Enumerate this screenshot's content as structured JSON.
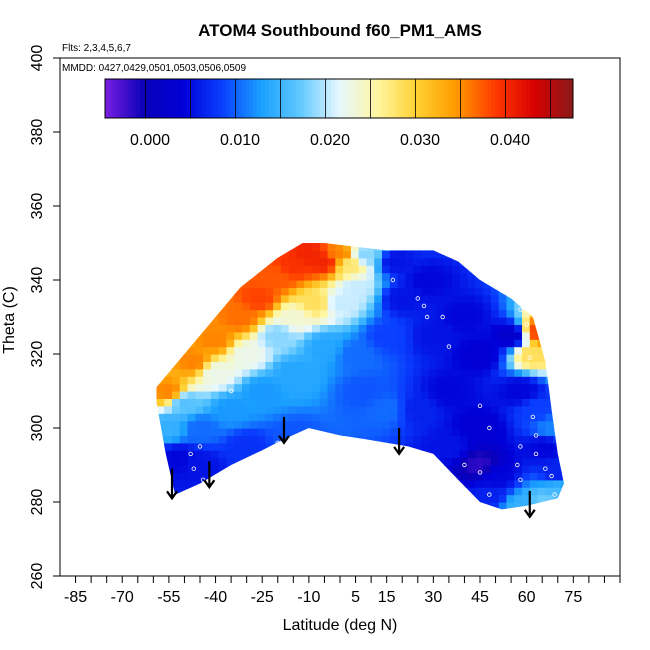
{
  "chart_data": {
    "type": "heatmap",
    "title": "ATOM4 Southbound f60_PM1_AMS",
    "flights_note": "Flts: 2,3,4,5,6,7",
    "dates_note": "MMDD: 0427,0429,0501,0503,0506,0509",
    "xlabel": "Latitude (deg N)",
    "ylabel": "Theta (C)",
    "xlim": [
      -90,
      90
    ],
    "ylim": [
      260,
      400
    ],
    "x_ticks": [
      -85,
      -70,
      -55,
      -40,
      -25,
      -10,
      5,
      15,
      30,
      45,
      60,
      75
    ],
    "y_ticks": [
      260,
      280,
      300,
      320,
      340,
      360,
      380,
      400
    ],
    "colorbar": {
      "range": [
        -0.005,
        0.047
      ],
      "ticks": [
        0.0,
        0.01,
        0.02,
        0.03,
        0.04
      ],
      "tick_labels": [
        "0.000",
        "0.010",
        "0.020",
        "0.030",
        "0.040"
      ],
      "colors": [
        "#7a1fe0",
        "#0a00b8",
        "#0000d8",
        "#0a3fff",
        "#1aa0ff",
        "#60c8ff",
        "#e6f7ff",
        "#fff6a0",
        "#ffd030",
        "#ff9a00",
        "#ff3a00",
        "#d80000",
        "#8a1a1a"
      ]
    },
    "field_outline": [
      [
        -59,
        307
      ],
      [
        -56,
        293
      ],
      [
        -53,
        282
      ],
      [
        -45,
        285
      ],
      [
        -35,
        290
      ],
      [
        -25,
        294
      ],
      [
        -18,
        297
      ],
      [
        -10,
        300
      ],
      [
        -5,
        299
      ],
      [
        0,
        298
      ],
      [
        8,
        297
      ],
      [
        15,
        296
      ],
      [
        22,
        295
      ],
      [
        30,
        293
      ],
      [
        38,
        286
      ],
      [
        45,
        280
      ],
      [
        52,
        278
      ],
      [
        60,
        279
      ],
      [
        70,
        281
      ],
      [
        72,
        285
      ],
      [
        70,
        293
      ],
      [
        68,
        305
      ],
      [
        66,
        318
      ],
      [
        62,
        330
      ],
      [
        55,
        335
      ],
      [
        45,
        340
      ],
      [
        38,
        345
      ],
      [
        30,
        348
      ],
      [
        15,
        348
      ],
      [
        5,
        349
      ],
      [
        -5,
        350
      ],
      [
        -12,
        350
      ],
      [
        -20,
        346
      ],
      [
        -32,
        338
      ],
      [
        -42,
        328
      ],
      [
        -52,
        318
      ],
      [
        -59,
        311
      ]
    ],
    "field_samples": [
      {
        "x": -10,
        "y": 347,
        "v": 0.04
      },
      {
        "x": -15,
        "y": 344,
        "v": 0.039
      },
      {
        "x": -20,
        "y": 341,
        "v": 0.037
      },
      {
        "x": -26,
        "y": 335,
        "v": 0.038
      },
      {
        "x": -32,
        "y": 330,
        "v": 0.036
      },
      {
        "x": -40,
        "y": 324,
        "v": 0.035
      },
      {
        "x": -47,
        "y": 318,
        "v": 0.035
      },
      {
        "x": -55,
        "y": 310,
        "v": 0.035
      },
      {
        "x": -5,
        "y": 345,
        "v": 0.04
      },
      {
        "x": 0,
        "y": 347,
        "v": 0.035
      },
      {
        "x": 3,
        "y": 344,
        "v": 0.027
      },
      {
        "x": 8,
        "y": 347,
        "v": 0.018
      },
      {
        "x": 5,
        "y": 338,
        "v": 0.02
      },
      {
        "x": 0,
        "y": 334,
        "v": 0.02
      },
      {
        "x": -8,
        "y": 334,
        "v": 0.028
      },
      {
        "x": -15,
        "y": 330,
        "v": 0.023
      },
      {
        "x": -20,
        "y": 325,
        "v": 0.018
      },
      {
        "x": -30,
        "y": 320,
        "v": 0.022
      },
      {
        "x": -40,
        "y": 315,
        "v": 0.022
      },
      {
        "x": -50,
        "y": 307,
        "v": 0.016
      },
      {
        "x": -55,
        "y": 300,
        "v": 0.014
      },
      {
        "x": -5,
        "y": 322,
        "v": 0.013
      },
      {
        "x": -15,
        "y": 315,
        "v": 0.013
      },
      {
        "x": -25,
        "y": 310,
        "v": 0.012
      },
      {
        "x": -35,
        "y": 305,
        "v": 0.012
      },
      {
        "x": -45,
        "y": 300,
        "v": 0.01
      },
      {
        "x": -52,
        "y": 292,
        "v": 0.004
      },
      {
        "x": -45,
        "y": 290,
        "v": 0.005
      },
      {
        "x": -30,
        "y": 295,
        "v": 0.007
      },
      {
        "x": -15,
        "y": 298,
        "v": 0.009
      },
      {
        "x": 5,
        "y": 320,
        "v": 0.01
      },
      {
        "x": 8,
        "y": 310,
        "v": 0.009
      },
      {
        "x": 15,
        "y": 305,
        "v": 0.01
      },
      {
        "x": 15,
        "y": 325,
        "v": 0.008
      },
      {
        "x": 20,
        "y": 335,
        "v": 0.005
      },
      {
        "x": 18,
        "y": 345,
        "v": 0.005
      },
      {
        "x": 28,
        "y": 340,
        "v": 0.004
      },
      {
        "x": 30,
        "y": 325,
        "v": 0.005
      },
      {
        "x": 40,
        "y": 330,
        "v": 0.004
      },
      {
        "x": 25,
        "y": 305,
        "v": 0.006
      },
      {
        "x": 35,
        "y": 310,
        "v": 0.004
      },
      {
        "x": 45,
        "y": 320,
        "v": 0.003
      },
      {
        "x": 55,
        "y": 325,
        "v": 0.002
      },
      {
        "x": 58,
        "y": 310,
        "v": 0.004
      },
      {
        "x": 62,
        "y": 320,
        "v": 0.028
      },
      {
        "x": 64,
        "y": 326,
        "v": 0.038
      },
      {
        "x": 63,
        "y": 305,
        "v": 0.008
      },
      {
        "x": 68,
        "y": 300,
        "v": 0.011
      },
      {
        "x": 66,
        "y": 295,
        "v": 0.004
      },
      {
        "x": 45,
        "y": 300,
        "v": 0.003
      },
      {
        "x": 35,
        "y": 295,
        "v": 0.005
      },
      {
        "x": 45,
        "y": 290,
        "v": -0.002
      },
      {
        "x": 50,
        "y": 287,
        "v": 0.004
      },
      {
        "x": 48,
        "y": 282,
        "v": 0.006
      },
      {
        "x": 58,
        "y": 279,
        "v": 0.014
      },
      {
        "x": 66,
        "y": 280,
        "v": 0.017
      },
      {
        "x": 70,
        "y": 283,
        "v": 0.015
      },
      {
        "x": 70,
        "y": 288,
        "v": 0.006
      }
    ],
    "arrows": [
      {
        "x": -54,
        "y_from": 289,
        "y_to": 281
      },
      {
        "x": -42,
        "y_from": 291,
        "y_to": 284
      },
      {
        "x": -18,
        "y_from": 303,
        "y_to": 296
      },
      {
        "x": 19,
        "y_from": 300,
        "y_to": 293
      },
      {
        "x": 61,
        "y_from": 283,
        "y_to": 276
      }
    ],
    "sample_points": [
      [
        -48,
        293
      ],
      [
        -45,
        295
      ],
      [
        -44,
        286
      ],
      [
        -47,
        289
      ],
      [
        -35,
        310
      ],
      [
        -20,
        296
      ],
      [
        17,
        340
      ],
      [
        25,
        335
      ],
      [
        27,
        333
      ],
      [
        28,
        330
      ],
      [
        33,
        330
      ],
      [
        35,
        322
      ],
      [
        45,
        306
      ],
      [
        48,
        300
      ],
      [
        45,
        288
      ],
      [
        48,
        282
      ],
      [
        44,
        276
      ],
      [
        40,
        290
      ],
      [
        58,
        332
      ],
      [
        60,
        328
      ],
      [
        61,
        319
      ],
      [
        62,
        303
      ],
      [
        58,
        295
      ],
      [
        57,
        290
      ],
      [
        63,
        298
      ],
      [
        66,
        289
      ],
      [
        68,
        287
      ],
      [
        69,
        282
      ],
      [
        58,
        286
      ],
      [
        63,
        293
      ]
    ]
  }
}
